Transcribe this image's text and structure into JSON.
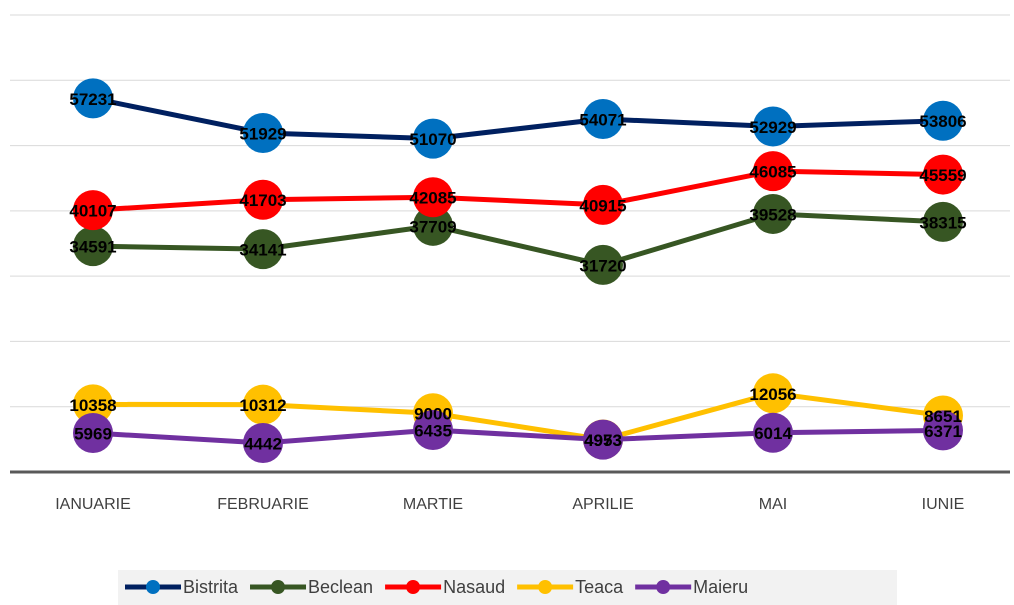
{
  "chart_data": {
    "type": "line",
    "categories": [
      "IANUARIE",
      "FEBRUARIE",
      "MARTIE",
      "APRILIE",
      "MAI",
      "IUNIE"
    ],
    "series": [
      {
        "name": "Bistrita",
        "color": "#002060",
        "marker_color": "#0070c0",
        "values": [
          57231,
          51929,
          51070,
          54071,
          52929,
          53806
        ]
      },
      {
        "name": "Beclean",
        "color": "#375623",
        "marker_color": "#375623",
        "values": [
          34591,
          34141,
          37709,
          31720,
          39528,
          38315
        ]
      },
      {
        "name": "Nasaud",
        "color": "#ff0000",
        "marker_color": "#ff0000",
        "values": [
          40107,
          41703,
          42085,
          40915,
          46085,
          45559
        ]
      },
      {
        "name": "Teaca",
        "color": "#ffc000",
        "marker_color": "#ffc000",
        "values": [
          10358,
          10312,
          9000,
          4973,
          12056,
          8651
        ]
      },
      {
        "name": "Maieru",
        "color": "#7030a0",
        "marker_color": "#7030a0",
        "values": [
          5969,
          4442,
          6435,
          4953,
          6014,
          6371
        ]
      }
    ],
    "ylim": [
      0,
      70000
    ],
    "yticks": [
      0,
      10000,
      20000,
      30000,
      40000,
      50000,
      60000,
      70000
    ],
    "grid": true,
    "legend": "bottom"
  }
}
